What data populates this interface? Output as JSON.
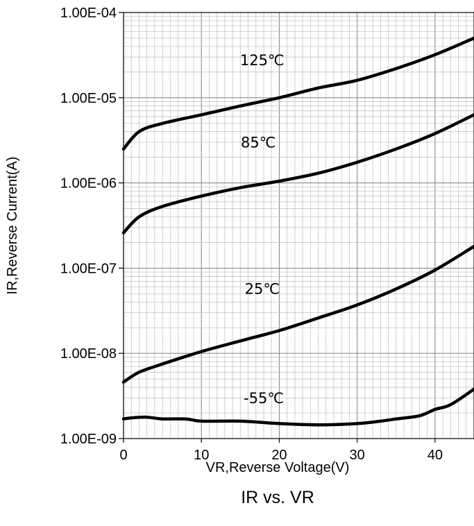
{
  "chart_data": {
    "type": "line",
    "title": "IR vs. VR",
    "xlabel": "VR,Reverse Voltage(V)",
    "ylabel": "IR,Reverse Current(A)",
    "xlim": [
      0,
      45
    ],
    "ylim": [
      1e-09,
      0.0001
    ],
    "yscale": "log",
    "grid": true,
    "x_ticks": [
      0,
      10,
      20,
      30,
      40
    ],
    "x_tick_labels": [
      "0",
      "10",
      "20",
      "30",
      "40"
    ],
    "y_ticks": [
      1e-09,
      1e-08,
      1e-07,
      1e-06,
      1e-05,
      0.0001
    ],
    "y_tick_labels": [
      "1.00E-09",
      "1.00E-08",
      "1.00E-07",
      "1.00E-06",
      "1.00E-05",
      "1.00E-04"
    ],
    "series": [
      {
        "name": "125℃",
        "x": [
          0,
          2,
          5,
          10,
          15,
          20,
          25,
          30,
          35,
          40,
          45
        ],
        "y": [
          2.5e-06,
          4e-06,
          5e-06,
          6.3e-06,
          8e-06,
          1e-05,
          1.3e-05,
          1.6e-05,
          2.2e-05,
          3.2e-05,
          5e-05
        ]
      },
      {
        "name": "85℃",
        "x": [
          0,
          2,
          5,
          10,
          15,
          20,
          25,
          30,
          35,
          40,
          45
        ],
        "y": [
          2.6e-07,
          4e-07,
          5.3e-07,
          7e-07,
          8.8e-07,
          1.05e-06,
          1.3e-06,
          1.75e-06,
          2.5e-06,
          3.8e-06,
          6.3e-06
        ]
      },
      {
        "name": "25℃",
        "x": [
          0,
          2,
          5,
          10,
          15,
          20,
          25,
          30,
          35,
          40,
          45
        ],
        "y": [
          4.6e-09,
          6e-09,
          7.5e-09,
          1.05e-08,
          1.4e-08,
          1.85e-08,
          2.6e-08,
          3.7e-08,
          5.7e-08,
          9.5e-08,
          1.8e-07
        ]
      },
      {
        "name": "-55℃",
        "x": [
          0,
          1,
          3,
          5,
          8,
          10,
          15,
          20,
          25,
          30,
          33,
          35,
          38,
          40,
          42,
          45
        ],
        "y": [
          1.7e-09,
          1.75e-09,
          1.78e-09,
          1.7e-09,
          1.7e-09,
          1.6e-09,
          1.6e-09,
          1.5e-09,
          1.45e-09,
          1.5e-09,
          1.6e-09,
          1.7e-09,
          1.85e-09,
          2.2e-09,
          2.5e-09,
          3.8e-09
        ]
      }
    ]
  }
}
